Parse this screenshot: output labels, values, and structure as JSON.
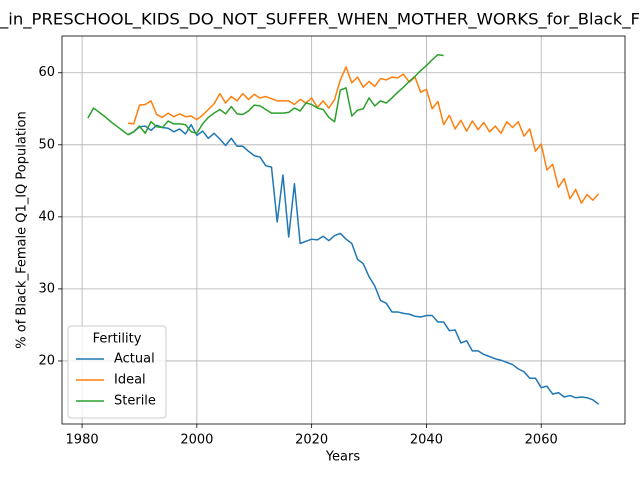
{
  "chart_data": {
    "type": "line",
    "title": "_in_PRESCHOOL_KIDS_DO_NOT_SUFFER_WHEN_MOTHER_WORKS_for_Black_F",
    "x_label": "Years",
    "y_label": "% of Black_Female Q1_IQ Population",
    "legend_title": "Fertility",
    "legend": "lower left",
    "grid": true,
    "x": [
      1981,
      1982,
      1983,
      1984,
      1985,
      1986,
      1987,
      1988,
      1989,
      1990,
      1991,
      1992,
      1993,
      1994,
      1995,
      1996,
      1997,
      1998,
      1999,
      2000,
      2001,
      2002,
      2003,
      2004,
      2005,
      2006,
      2007,
      2008,
      2009,
      2010,
      2011,
      2012,
      2013,
      2014,
      2015,
      2016,
      2017,
      2018,
      2019,
      2020,
      2021,
      2022,
      2023,
      2024,
      2025,
      2026,
      2027,
      2028,
      2029,
      2030,
      2031,
      2032,
      2033,
      2034,
      2035,
      2036,
      2037,
      2038,
      2039,
      2040,
      2041,
      2042,
      2043,
      2044,
      2045,
      2046,
      2047,
      2048,
      2049,
      2050,
      2051,
      2052,
      2053,
      2054,
      2055,
      2056,
      2057,
      2058,
      2059,
      2060,
      2061,
      2062,
      2063,
      2064,
      2065,
      2066,
      2067,
      2068,
      2069,
      2070
    ],
    "series": [
      {
        "name": "Actual",
        "color": "#1f77b4",
        "values": [
          null,
          null,
          null,
          null,
          null,
          null,
          null,
          51.4,
          51.8,
          52.5,
          52.6,
          52.0,
          52.7,
          52.4,
          52.3,
          51.8,
          52.2,
          51.5,
          52.8,
          51.3,
          51.9,
          50.9,
          51.6,
          50.8,
          49.9,
          50.9,
          49.8,
          49.8,
          49.1,
          48.5,
          48.3,
          47.1,
          46.9,
          39.3,
          45.8,
          37.2,
          44.6,
          36.3,
          36.6,
          36.9,
          36.8,
          37.3,
          36.7,
          37.4,
          37.7,
          36.9,
          36.3,
          34.1,
          33.5,
          31.7,
          30.4,
          28.4,
          28.0,
          26.8,
          26.8,
          26.6,
          26.5,
          26.2,
          26.1,
          26.3,
          26.3,
          25.4,
          25.4,
          24.2,
          24.3,
          22.5,
          22.8,
          21.4,
          21.4,
          20.9,
          20.6,
          20.3,
          20.1,
          19.8,
          19.5,
          18.9,
          18.5,
          17.6,
          17.6,
          16.3,
          16.5,
          15.4,
          15.6,
          15.0,
          15.2,
          14.9,
          15.0,
          14.9,
          14.6,
          14.0
        ]
      },
      {
        "name": "Ideal",
        "color": "#ff7f0e",
        "values": [
          null,
          null,
          null,
          null,
          null,
          null,
          null,
          53.0,
          52.9,
          55.5,
          55.6,
          56.1,
          54.2,
          53.8,
          54.4,
          53.9,
          54.3,
          53.9,
          54.0,
          53.5,
          54.1,
          54.9,
          55.7,
          57.1,
          55.8,
          56.7,
          56.1,
          57.1,
          56.3,
          57.0,
          56.5,
          56.7,
          56.4,
          56.1,
          56.1,
          56.1,
          55.6,
          56.3,
          55.8,
          56.5,
          55.2,
          56.1,
          55.1,
          56.3,
          59.0,
          60.8,
          58.6,
          59.4,
          58.0,
          58.8,
          58.1,
          59.2,
          59.0,
          59.4,
          59.3,
          59.8,
          58.7,
          59.4,
          57.3,
          57.7,
          55.0,
          56.0,
          52.8,
          54.1,
          52.2,
          53.4,
          51.9,
          53.3,
          52.1,
          53.1,
          51.8,
          52.6,
          51.6,
          53.2,
          52.4,
          53.2,
          51.2,
          52.2,
          49.1,
          50.1,
          46.5,
          47.3,
          44.1,
          45.3,
          42.5,
          43.8,
          41.9,
          43.1,
          42.3,
          43.2
        ]
      },
      {
        "name": "Sterile",
        "color": "#2ca02c",
        "values": [
          53.7,
          55.1,
          54.5,
          53.9,
          53.2,
          52.6,
          52.0,
          51.4,
          51.8,
          52.6,
          51.6,
          53.2,
          52.5,
          52.4,
          53.3,
          52.9,
          52.9,
          52.8,
          51.8,
          51.6,
          52.9,
          53.8,
          54.4,
          54.9,
          54.3,
          55.3,
          54.3,
          54.2,
          54.7,
          55.5,
          55.4,
          54.9,
          54.4,
          54.4,
          54.4,
          54.5,
          55.1,
          54.7,
          55.8,
          55.6,
          55.1,
          54.9,
          53.8,
          53.2,
          57.6,
          57.9,
          54.0,
          54.8,
          55.0,
          56.5,
          55.4,
          56.1,
          55.8,
          56.5,
          57.3,
          58.0,
          58.8,
          59.5,
          60.3,
          61.0,
          61.8,
          62.5,
          62.4,
          null,
          null,
          null,
          null,
          null,
          null,
          null,
          null,
          null,
          null,
          null,
          null,
          null,
          null,
          null,
          null,
          null,
          null,
          null,
          null,
          null,
          null,
          null,
          null,
          null,
          null,
          null
        ]
      }
    ],
    "xlim": [
      1976.5,
      2074.6
    ],
    "xticks": [
      1980,
      2000,
      2020,
      2040,
      2060
    ],
    "ylim": [
      11.25,
      65.1
    ],
    "yticks": [
      20,
      30,
      40,
      50,
      60
    ]
  }
}
